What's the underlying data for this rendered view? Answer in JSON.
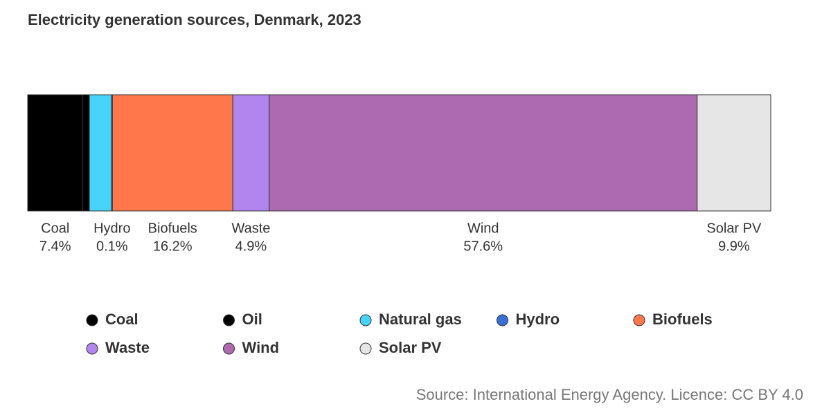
{
  "chart_data": {
    "type": "stacked_bar_100",
    "title": "Electricity generation sources, Denmark, 2023",
    "source": "Source: International Energy Agency. Licence: CC BY 4.0",
    "series": [
      {
        "name": "Coal",
        "color": "#000000",
        "values": [
          7.4
        ],
        "value_labels": [
          "7.4%"
        ]
      },
      {
        "name": "Oil",
        "color": "#000000",
        "values": [
          0.9
        ],
        "value_labels": [
          null
        ]
      },
      {
        "name": "Natural gas",
        "color": "#48d3fb",
        "values": [
          3.0
        ],
        "value_labels": [
          null
        ]
      },
      {
        "name": "Hydro",
        "color": "#3a6fd4",
        "values": [
          0.1
        ],
        "value_labels": [
          "0.1%"
        ]
      },
      {
        "name": "Biofuels",
        "color": "#ff774b",
        "values": [
          16.2
        ],
        "value_labels": [
          "16.2%"
        ]
      },
      {
        "name": "Waste",
        "color": "#b086ee",
        "values": [
          4.9
        ],
        "value_labels": [
          "4.9%"
        ]
      },
      {
        "name": "Wind",
        "color": "#ae6ab0",
        "values": [
          57.6
        ],
        "value_labels": [
          "57.6%"
        ]
      },
      {
        "name": "Solar PV",
        "color": "#e6e6e6",
        "values": [
          9.9
        ],
        "value_labels": [
          "9.9%"
        ]
      }
    ]
  }
}
